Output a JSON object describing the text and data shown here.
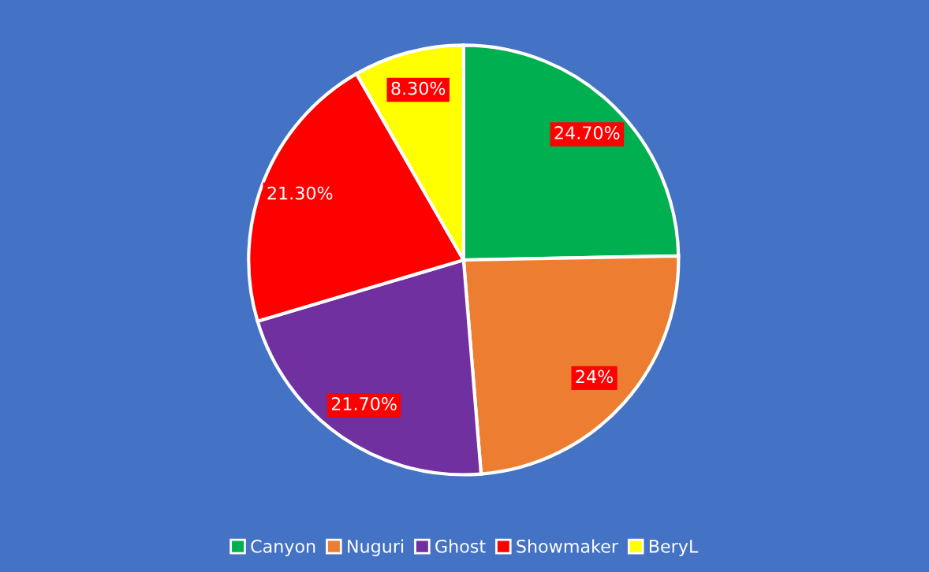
{
  "chart_data": {
    "type": "pie",
    "categories": [
      "Canyon",
      "Nuguri",
      "Ghost",
      "Showmaker",
      "BeryL"
    ],
    "values": [
      24.7,
      24,
      21.7,
      21.3,
      8.3
    ],
    "colors": [
      "#00b050",
      "#ed7d31",
      "#7030a0",
      "#ff0000",
      "#ffff00"
    ],
    "value_labels": [
      "24.70%",
      "24%",
      "21.70%",
      "21.30%",
      "8.30%"
    ],
    "legend": "bottom"
  }
}
